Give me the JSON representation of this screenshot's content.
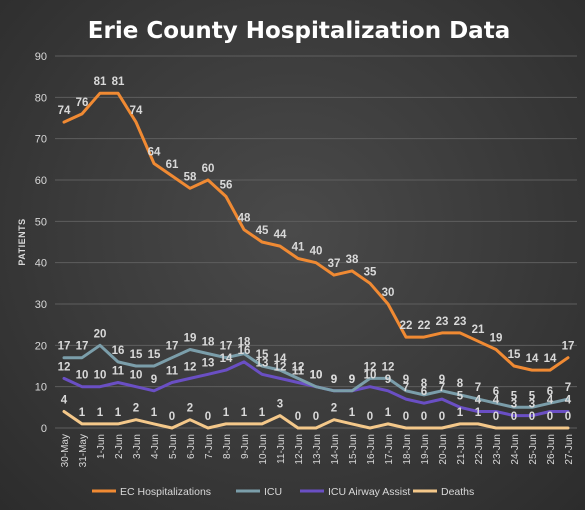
{
  "chart_data": {
    "type": "line",
    "title": "Erie County Hospitalization Data",
    "ylabel": "PATIENTS",
    "xlabel": "",
    "ylim": [
      0,
      90
    ],
    "yticks": [
      0,
      10,
      20,
      30,
      40,
      50,
      60,
      70,
      80,
      90
    ],
    "grid": true,
    "legend": "bottom",
    "categories": [
      "30-May",
      "31-May",
      "1-Jun",
      "2-Jun",
      "3-Jun",
      "4-Jun",
      "5-Jun",
      "6-Jun",
      "7-Jun",
      "8-Jun",
      "9-Jun",
      "10-Jun",
      "11-Jun",
      "12-Jun",
      "13-Jun",
      "14-Jun",
      "15-Jun",
      "16-Jun",
      "17-Jun",
      "18-Jun",
      "19-Jun",
      "20-Jun",
      "21-Jun",
      "22-Jun",
      "23-Jun",
      "24-Jun",
      "25-Jun",
      "26-Jun",
      "27-Jun"
    ],
    "series": [
      {
        "name": "EC Hospitalizations",
        "color": "#f08a33",
        "values": [
          74,
          76,
          81,
          81,
          74,
          64,
          61,
          58,
          60,
          56,
          48,
          45,
          44,
          41,
          40,
          37,
          38,
          35,
          30,
          22,
          22,
          23,
          23,
          21,
          19,
          15,
          14,
          14,
          17
        ]
      },
      {
        "name": "ICU",
        "color": "#7b9eaa",
        "values": [
          17,
          17,
          20,
          16,
          15,
          15,
          17,
          19,
          18,
          17,
          18,
          15,
          14,
          12,
          10,
          9,
          9,
          12,
          12,
          9,
          8,
          9,
          8,
          7,
          6,
          5,
          5,
          6,
          7
        ]
      },
      {
        "name": "ICU Airway Assist",
        "color": "#6a4fc4",
        "values": [
          12,
          10,
          10,
          11,
          10,
          9,
          11,
          12,
          13,
          14,
          16,
          13,
          12,
          11,
          10,
          9,
          9,
          10,
          9,
          7,
          6,
          7,
          5,
          4,
          4,
          3,
          3,
          4,
          4
        ]
      },
      {
        "name": "Deaths",
        "color": "#f4c88a",
        "values": [
          4,
          1,
          1,
          1,
          2,
          1,
          0,
          2,
          0,
          1,
          1,
          1,
          3,
          0,
          0,
          2,
          1,
          0,
          1,
          0,
          0,
          0,
          1,
          1,
          0,
          0,
          0,
          0,
          0
        ]
      }
    ]
  }
}
